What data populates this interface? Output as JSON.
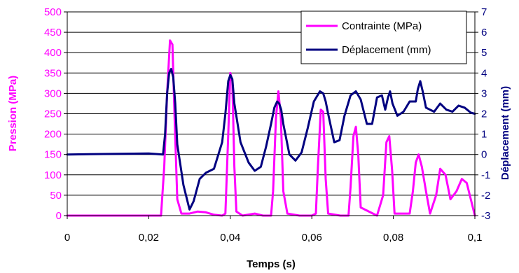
{
  "chart_data": {
    "type": "line",
    "xlabel": "Temps (s)",
    "ylabel_left": "Pression (MPa)",
    "ylabel_right": "Déplacement (mm)",
    "xlim": [
      0,
      0.1
    ],
    "ylim_left": [
      0,
      500
    ],
    "ylim_right": [
      -3,
      7
    ],
    "x_ticks": [
      "0",
      "0,02",
      "0,04",
      "0,06",
      "0,08",
      "0,1"
    ],
    "y_left_ticks": [
      "0",
      "50",
      "100",
      "150",
      "200",
      "250",
      "300",
      "350",
      "400",
      "450",
      "500"
    ],
    "y_right_ticks": [
      "-3",
      "-2",
      "-1",
      "0",
      "1",
      "2",
      "3",
      "4",
      "5",
      "6",
      "7"
    ],
    "grid": "horizontal",
    "legend_position": "top-right",
    "colors": {
      "left_axis": "#ff00ff",
      "right_axis": "#000080"
    },
    "series": [
      {
        "name": "Contrainte (MPa)",
        "axis": "left",
        "color": "#ff00ff",
        "x": [
          0,
          0.023,
          0.0238,
          0.0245,
          0.0252,
          0.0258,
          0.0263,
          0.027,
          0.028,
          0.03,
          0.032,
          0.034,
          0.036,
          0.038,
          0.0388,
          0.0395,
          0.04,
          0.0405,
          0.041,
          0.0415,
          0.043,
          0.046,
          0.048,
          0.05,
          0.0505,
          0.0512,
          0.0518,
          0.0524,
          0.053,
          0.054,
          0.057,
          0.06,
          0.061,
          0.0615,
          0.0622,
          0.0628,
          0.0634,
          0.064,
          0.067,
          0.069,
          0.0695,
          0.0702,
          0.0708,
          0.0714,
          0.072,
          0.076,
          0.0775,
          0.0783,
          0.079,
          0.0797,
          0.0803,
          0.084,
          0.0848,
          0.0855,
          0.0862,
          0.087,
          0.088,
          0.089,
          0.0905,
          0.0915,
          0.0928,
          0.094,
          0.0955,
          0.0968,
          0.098,
          0.1
        ],
        "y": [
          0,
          0,
          120,
          300,
          430,
          420,
          250,
          40,
          5,
          5,
          10,
          8,
          2,
          0,
          5,
          200,
          350,
          330,
          120,
          10,
          0,
          5,
          0,
          0,
          60,
          240,
          305,
          240,
          60,
          5,
          0,
          0,
          5,
          120,
          260,
          255,
          90,
          5,
          0,
          0,
          70,
          195,
          218,
          150,
          20,
          0,
          50,
          180,
          195,
          110,
          5,
          5,
          60,
          130,
          150,
          120,
          60,
          5,
          50,
          115,
          100,
          40,
          60,
          90,
          80,
          0
        ]
      },
      {
        "name": "Déplacement (mm)",
        "axis": "right",
        "color": "#000080",
        "x": [
          0,
          0.02,
          0.0235,
          0.024,
          0.0245,
          0.025,
          0.0255,
          0.026,
          0.0265,
          0.027,
          0.0285,
          0.03,
          0.031,
          0.0325,
          0.034,
          0.036,
          0.038,
          0.0388,
          0.0395,
          0.04,
          0.0405,
          0.041,
          0.0425,
          0.0445,
          0.046,
          0.0475,
          0.0488,
          0.05,
          0.0508,
          0.0515,
          0.052,
          0.0525,
          0.053,
          0.0545,
          0.056,
          0.0575,
          0.059,
          0.0605,
          0.062,
          0.0628,
          0.0634,
          0.064,
          0.0655,
          0.0668,
          0.068,
          0.0695,
          0.0708,
          0.072,
          0.0735,
          0.0748,
          0.076,
          0.0772,
          0.078,
          0.0787,
          0.0792,
          0.0798,
          0.081,
          0.0825,
          0.084,
          0.0855,
          0.086,
          0.0866,
          0.0872,
          0.088,
          0.09,
          0.0915,
          0.093,
          0.0945,
          0.096,
          0.0975,
          0.099,
          0.1
        ],
        "y": [
          0,
          0.05,
          0,
          1,
          3,
          4,
          4.2,
          3.8,
          2.5,
          0.5,
          -1.5,
          -2.7,
          -2.3,
          -1.2,
          -0.9,
          -0.7,
          0.6,
          2,
          3.6,
          3.9,
          3.7,
          2.5,
          0.6,
          -0.4,
          -0.8,
          -0.6,
          0.4,
          1.5,
          2.3,
          2.6,
          2.5,
          2.2,
          1.5,
          0,
          -0.3,
          0.1,
          1.3,
          2.6,
          3.1,
          3,
          2.6,
          2,
          0.6,
          0.7,
          1.9,
          2.9,
          3.1,
          2.7,
          1.5,
          1.5,
          2.8,
          2.9,
          2.2,
          2.8,
          3.1,
          2.5,
          1.9,
          2.1,
          2.6,
          2.6,
          3.2,
          3.6,
          3.1,
          2.3,
          2.1,
          2.5,
          2.2,
          2.1,
          2.4,
          2.3,
          2.05,
          2
        ]
      }
    ]
  }
}
